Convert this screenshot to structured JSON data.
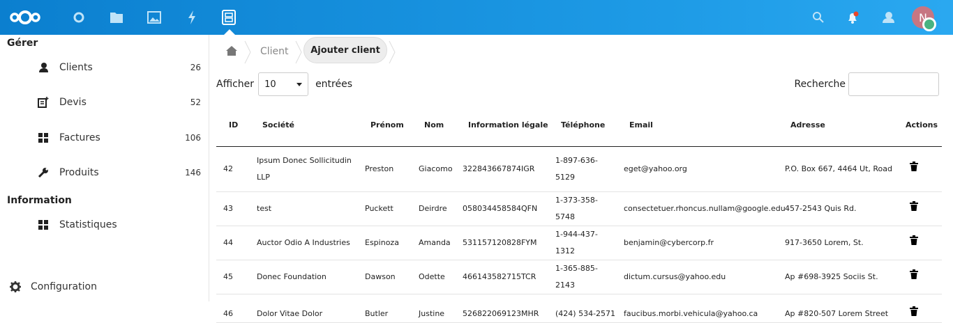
{
  "topbar": {
    "apps": [
      "logo",
      "dashboard-icon",
      "files-icon",
      "photos-icon",
      "activity-icon",
      "clients-app-icon"
    ],
    "avatar_initial": "N",
    "accent": "#0082c9"
  },
  "sidebar": {
    "section_manage": "Gérer",
    "items": [
      {
        "label": "Clients",
        "count": "26"
      },
      {
        "label": "Devis",
        "count": "52"
      },
      {
        "label": "Factures",
        "count": "106"
      },
      {
        "label": "Produits",
        "count": "146"
      }
    ],
    "section_info": "Information",
    "info_items": [
      {
        "label": "Statistiques"
      }
    ],
    "settings": "Configuration"
  },
  "breadcrumb": {
    "client": "Client",
    "current": "Ajouter client"
  },
  "length": {
    "prefix": "Afficher",
    "value": "10",
    "suffix": "entrées"
  },
  "search": {
    "label": "Recherche",
    "value": ""
  },
  "table": {
    "headers": [
      "ID",
      "Société",
      "Prénom",
      "Nom",
      "Information légale",
      "Téléphone",
      "Email",
      "Adresse",
      "Actions"
    ],
    "rows": [
      [
        "42",
        "Ipsum Donec Sollicitudin LLP",
        "Preston",
        "Giacomo",
        "322843667874IGR",
        "1-897-636-5129",
        "eget@yahoo.org",
        "P.O. Box 667, 4464 Ut, Road"
      ],
      [
        "43",
        "test",
        "Puckett",
        "Deirdre",
        "058034458584QFN",
        "1-373-358-5748",
        "consectetuer.rhoncus.nullam@google.edu",
        "457-2543 Quis Rd."
      ],
      [
        "44",
        "Auctor Odio A Industries",
        "Espinoza",
        "Amanda",
        "531157120828FYM",
        "1-944-437-1312",
        "benjamin@cybercorp.fr",
        "917-3650 Lorem, St."
      ],
      [
        "45",
        "Donec Foundation",
        "Dawson",
        "Odette",
        "466143582715TCR",
        "1-365-885-2143",
        "dictum.cursus@yahoo.edu",
        "Ap #698-3925 Sociis St."
      ],
      [
        "46",
        "Dolor Vitae Dolor",
        "Butler",
        "Justine",
        "526822069123MHR",
        "(424) 534-2571",
        "faucibus.morbi.vehicula@yahoo.ca",
        "Ap #820-507 Lorem Street"
      ]
    ]
  }
}
